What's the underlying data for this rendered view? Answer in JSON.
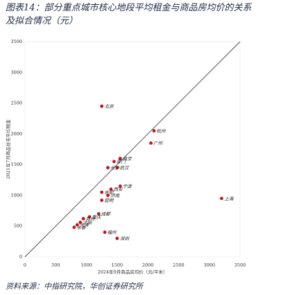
{
  "figure": {
    "title_line1": "图表14：部分重点城市核心地段平均租金与商品房均价的关系",
    "title_line2": "及拟合情况（元）",
    "source": "资料来源：中指研究院，华创证券研究所"
  },
  "chart_data": {
    "type": "scatter",
    "xlabel": "2024年9月商品房均价（元/平米）",
    "ylabel": "2021年7月商品住宅平均租金",
    "xlim": [
      0,
      3500
    ],
    "ylim": [
      0,
      3500
    ],
    "xticks": [
      0,
      500,
      1000,
      1500,
      2000,
      2500,
      3000,
      3500
    ],
    "yticks": [
      500,
      1000,
      1500,
      2000,
      2500,
      3000,
      3500
    ],
    "fit_line": {
      "x0": 0,
      "y0": 0,
      "x1": 3500,
      "y1": 3500
    },
    "series": [
      {
        "name": "",
        "color": "#c0141b",
        "points": [
          {
            "x": 2100,
            "y": 2050,
            "label": "杭州"
          },
          {
            "x": 2050,
            "y": 1850,
            "label": "广州"
          },
          {
            "x": 1550,
            "y": 1600,
            "label": "南京"
          },
          {
            "x": 1450,
            "y": 1550,
            "label": "厦门"
          },
          {
            "x": 1500,
            "y": 1450,
            "label": "武汉"
          },
          {
            "x": 1350,
            "y": 1450,
            "label": "长沙"
          },
          {
            "x": 1550,
            "y": 1150,
            "label": "宁波"
          },
          {
            "x": 1400,
            "y": 1100,
            "label": "西安"
          },
          {
            "x": 1250,
            "y": 1050,
            "label": "合肥"
          },
          {
            "x": 1350,
            "y": 1000,
            "label": "济南"
          },
          {
            "x": 1250,
            "y": 920,
            "label": "昆明"
          },
          {
            "x": 1200,
            "y": 700,
            "label": "成都"
          },
          {
            "x": 1050,
            "y": 650,
            "label": "重庆"
          },
          {
            "x": 950,
            "y": 620,
            "label": "郑州"
          },
          {
            "x": 900,
            "y": 560,
            "label": "沈阳"
          },
          {
            "x": 850,
            "y": 520,
            "label": "天津"
          },
          {
            "x": 800,
            "y": 480,
            "label": "长春"
          },
          {
            "x": 1300,
            "y": 400,
            "label": "福州"
          }
        ]
      },
      {
        "name": "",
        "color": "#c0141b",
        "points": []
      }
    ]
  },
  "labels": {
    "beijing": "北京",
    "shanghai": "上海",
    "shenzhen": "深圳",
    "tianjin_neg": "天津"
  }
}
